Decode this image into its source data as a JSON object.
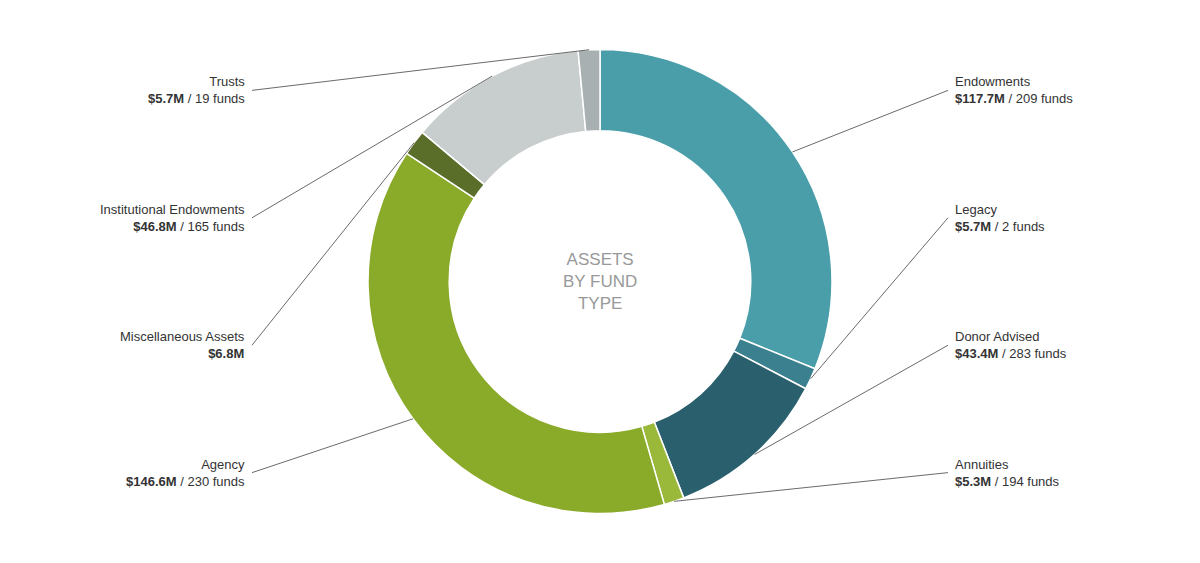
{
  "chart_data": {
    "type": "donut",
    "title": [
      "ASSETS",
      "BY FUND",
      "TYPE"
    ],
    "categories": [
      "Endowments",
      "Legacy",
      "Donor Advised",
      "Annuities",
      "Agency",
      "Miscellaneous Assets",
      "Institutional Endowments",
      "Trusts"
    ],
    "values": [
      117.7,
      5.7,
      43.4,
      5.3,
      146.6,
      6.8,
      46.8,
      5.7
    ],
    "value_labels": [
      "$117.7M",
      "$5.7M",
      "$43.4M",
      "$5.3M",
      "$146.6M",
      "$6.8M",
      "$46.8M",
      "$5.7M"
    ],
    "fund_labels": [
      "/ 209 funds",
      "/ 2 funds",
      "/ 283 funds",
      "/ 194 funds",
      "/ 230 funds",
      null,
      "/ 165 funds",
      "/ 19 funds"
    ],
    "colors": [
      "#4a9eaa",
      "#3a808f",
      "#2a5f6e",
      "#9ab83a",
      "#8aaa2a",
      "#5a6e2a",
      "#c8cece",
      "#a8b0b2"
    ],
    "data_labels": true
  }
}
